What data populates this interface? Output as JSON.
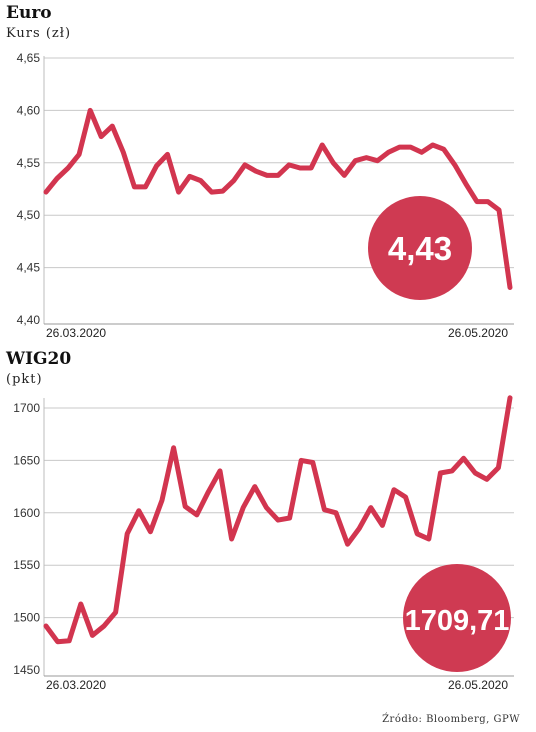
{
  "source": "Źródło: Bloomberg, GPW",
  "colors": {
    "line": "#d2354f",
    "badge": "#cf3a52",
    "grid": "#c8c8c8"
  },
  "chart_data": [
    {
      "type": "line",
      "title": "Euro",
      "ylabel": "Kurs (zł)",
      "ylim": [
        4.4,
        4.65
      ],
      "yticks": [
        "4,65",
        "4,60",
        "4,55",
        "4,50",
        "4,45",
        "4,40"
      ],
      "x_start_label": "26.03.2020",
      "x_end_label": "26.05.2020",
      "highlight_value": "4,43",
      "values": [
        4.522,
        4.535,
        4.545,
        4.558,
        4.6,
        4.575,
        4.585,
        4.56,
        4.527,
        4.527,
        4.547,
        4.558,
        4.522,
        4.537,
        4.533,
        4.522,
        4.523,
        4.533,
        4.548,
        4.542,
        4.538,
        4.538,
        4.548,
        4.545,
        4.545,
        4.567,
        4.55,
        4.538,
        4.552,
        4.555,
        4.552,
        4.56,
        4.565,
        4.565,
        4.56,
        4.567,
        4.563,
        4.548,
        4.53,
        4.513,
        4.513,
        4.505,
        4.431
      ]
    },
    {
      "type": "line",
      "title": "WIG20",
      "ylabel": "(pkt)",
      "ylim": [
        1450,
        1700
      ],
      "yticks": [
        "1700",
        "1650",
        "1600",
        "1550",
        "1500",
        "1450"
      ],
      "x_start_label": "26.03.2020",
      "x_end_label": "26.05.2020",
      "highlight_value": "1709,71",
      "values": [
        1492,
        1477,
        1478,
        1513,
        1483,
        1492,
        1505,
        1580,
        1602,
        1582,
        1612,
        1662,
        1606,
        1598,
        1620,
        1640,
        1575,
        1605,
        1625,
        1605,
        1593,
        1595,
        1650,
        1648,
        1603,
        1600,
        1570,
        1585,
        1605,
        1588,
        1622,
        1615,
        1580,
        1575,
        1638,
        1640,
        1652,
        1638,
        1632,
        1643,
        1709.71
      ]
    }
  ]
}
